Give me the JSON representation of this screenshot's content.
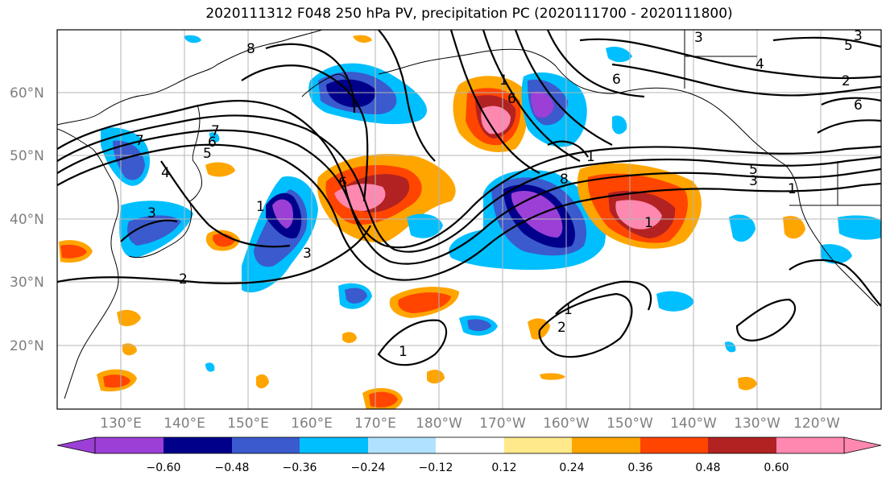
{
  "title": "2020111312 F048 250 hPa PV, precipitation PC (2020111700 - 2020111800)",
  "latitude_labels": [
    "60°N",
    "50°N",
    "40°N",
    "30°N",
    "20°N"
  ],
  "longitude_labels": [
    "130°E",
    "140°E",
    "150°E",
    "160°E",
    "170°E",
    "180°W",
    "170°W",
    "160°W",
    "150°W",
    "140°W",
    "130°W",
    "120°W"
  ],
  "colorbar": {
    "colors": [
      "#9b3fd6",
      "#00008b",
      "#3a5acd",
      "#00bfff",
      "#b0e2ff",
      "#ffffff",
      "#ffe98a",
      "#ffa500",
      "#ff4500",
      "#b22222",
      "#ff88b0"
    ],
    "tick_labels": [
      "−0.60",
      "−0.48",
      "−0.36",
      "−0.24",
      "−0.12",
      "0.12",
      "0.24",
      "0.36",
      "0.48",
      "0.60"
    ]
  },
  "contour_labels": [
    "8",
    "7",
    "6",
    "5",
    "4",
    "3",
    "2",
    "1",
    "6",
    "3",
    "7",
    "1",
    "6",
    "8",
    "1",
    "3",
    "4",
    "6",
    "5",
    "3",
    "1",
    "1",
    "2",
    "1",
    "1",
    "6",
    "5",
    "3",
    "2"
  ]
}
